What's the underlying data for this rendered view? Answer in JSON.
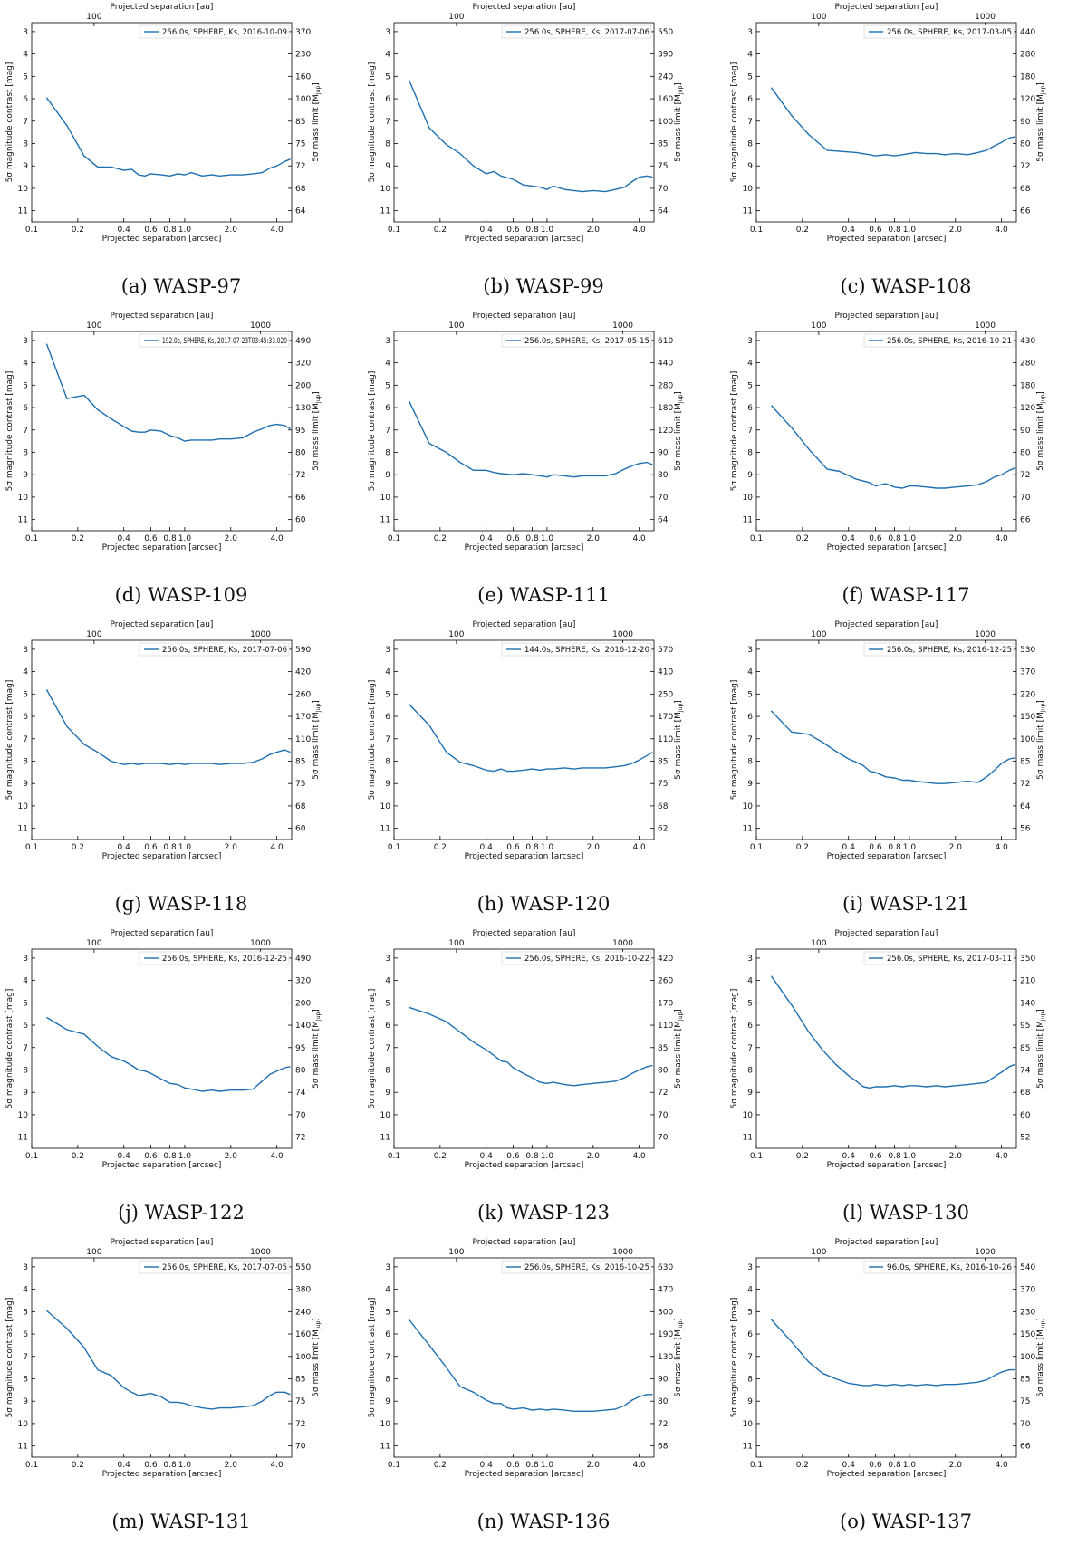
{
  "figure": {
    "common": {
      "xlabel": "Projected separation [arcsec]",
      "x2label": "Projected separation [au]",
      "ylabel": "5σ magnitude contrast [mag]",
      "y2label": "5σ mass limit [M",
      "y2label_sub": "Jup",
      "y2label_end": "]",
      "xticks": [
        "0.1",
        "0.2",
        "0.4",
        "0.6",
        "0.8",
        "1.0",
        "2.0",
        "4.0"
      ],
      "yticks": [
        "3",
        "4",
        "5",
        "6",
        "7",
        "8",
        "9",
        "10",
        "11"
      ],
      "xlim": [
        0.1,
        5.0
      ],
      "ylim": [
        11.5,
        2.6
      ],
      "line_color": "#1f6fb0"
    }
  },
  "chart_data": [
    {
      "id": "a",
      "type": "line",
      "caption": "(a) WASP-97",
      "legend": "256.0s, SPHERE, Ks, 2016-10-09",
      "au_ticks": [
        "100"
      ],
      "mass_ticks": [
        "370",
        "230",
        "160",
        "100",
        "85",
        "75",
        "72",
        "68",
        "64"
      ],
      "x": [
        0.125,
        0.17,
        0.22,
        0.27,
        0.33,
        0.4,
        0.45,
        0.5,
        0.55,
        0.6,
        0.7,
        0.8,
        0.9,
        1.0,
        1.1,
        1.3,
        1.5,
        1.7,
        2.0,
        2.4,
        2.8,
        3.2,
        3.6,
        4.0,
        4.5,
        4.9
      ],
      "y": [
        5.95,
        7.2,
        8.55,
        9.05,
        9.05,
        9.2,
        9.15,
        9.4,
        9.45,
        9.35,
        9.4,
        9.45,
        9.35,
        9.4,
        9.3,
        9.45,
        9.4,
        9.45,
        9.4,
        9.4,
        9.35,
        9.3,
        9.1,
        9.0,
        8.8,
        8.7
      ]
    },
    {
      "id": "b",
      "type": "line",
      "caption": "(b) WASP-99",
      "legend": "256.0s, SPHERE, Ks, 2017-07-06",
      "au_ticks": [
        "100"
      ],
      "mass_ticks": [
        "550",
        "390",
        "240",
        "160",
        "100",
        "85",
        "75",
        "70",
        "64"
      ],
      "x": [
        0.125,
        0.17,
        0.22,
        0.27,
        0.33,
        0.4,
        0.45,
        0.5,
        0.6,
        0.7,
        0.8,
        0.9,
        1.0,
        1.1,
        1.3,
        1.5,
        1.7,
        2.0,
        2.4,
        2.8,
        3.2,
        3.6,
        4.0,
        4.5,
        4.9
      ],
      "y": [
        5.15,
        7.3,
        8.05,
        8.45,
        9.0,
        9.35,
        9.25,
        9.45,
        9.6,
        9.85,
        9.9,
        9.95,
        10.05,
        9.9,
        10.05,
        10.1,
        10.15,
        10.1,
        10.15,
        10.05,
        9.95,
        9.7,
        9.5,
        9.45,
        9.5
      ]
    },
    {
      "id": "c",
      "type": "line",
      "caption": "(c) WASP-108",
      "legend": "256.0s, SPHERE, Ks, 2017-03-05",
      "au_ticks": [
        "100",
        "1000"
      ],
      "mass_ticks": [
        "440",
        "280",
        "180",
        "120",
        "90",
        "80",
        "72",
        "68",
        "66"
      ],
      "x": [
        0.125,
        0.17,
        0.22,
        0.29,
        0.35,
        0.45,
        0.55,
        0.6,
        0.7,
        0.8,
        0.9,
        1.0,
        1.1,
        1.3,
        1.5,
        1.7,
        2.0,
        2.4,
        2.8,
        3.2,
        3.6,
        4.0,
        4.5,
        4.9
      ],
      "y": [
        5.5,
        6.75,
        7.6,
        8.3,
        8.35,
        8.4,
        8.5,
        8.55,
        8.5,
        8.55,
        8.5,
        8.45,
        8.4,
        8.45,
        8.45,
        8.5,
        8.45,
        8.5,
        8.4,
        8.3,
        8.1,
        7.95,
        7.75,
        7.7
      ]
    },
    {
      "id": "d",
      "type": "line",
      "caption": "(d) WASP-109",
      "legend": "192.0s, SPHERE, Ks, 2017-07-23T03:45:33.020",
      "au_ticks": [
        "100",
        "1000"
      ],
      "mass_ticks": [
        "490",
        "320",
        "200",
        "130",
        "95",
        "80",
        "72",
        "66",
        "60"
      ],
      "x": [
        0.125,
        0.17,
        0.22,
        0.27,
        0.33,
        0.4,
        0.45,
        0.5,
        0.55,
        0.6,
        0.7,
        0.8,
        0.9,
        1.0,
        1.1,
        1.3,
        1.5,
        1.7,
        2.0,
        2.4,
        2.8,
        3.2,
        3.6,
        4.0,
        4.5,
        4.9
      ],
      "y": [
        3.15,
        5.6,
        5.45,
        6.1,
        6.5,
        6.85,
        7.05,
        7.1,
        7.1,
        7.0,
        7.05,
        7.25,
        7.35,
        7.5,
        7.45,
        7.45,
        7.45,
        7.4,
        7.4,
        7.35,
        7.1,
        6.95,
        6.8,
        6.75,
        6.8,
        6.95
      ]
    },
    {
      "id": "e",
      "type": "line",
      "caption": "(e) WASP-111",
      "legend": "256.0s, SPHERE, Ks, 2017-05-15",
      "au_ticks": [
        "100",
        "1000"
      ],
      "mass_ticks": [
        "610",
        "440",
        "280",
        "180",
        "120",
        "90",
        "80",
        "70",
        "64"
      ],
      "x": [
        0.125,
        0.17,
        0.22,
        0.27,
        0.33,
        0.4,
        0.45,
        0.5,
        0.6,
        0.7,
        0.8,
        0.9,
        1.0,
        1.1,
        1.3,
        1.5,
        1.7,
        2.0,
        2.4,
        2.8,
        3.2,
        3.6,
        4.0,
        4.5,
        4.9
      ],
      "y": [
        5.7,
        7.6,
        8.0,
        8.45,
        8.8,
        8.8,
        8.9,
        8.95,
        9.0,
        8.95,
        9.0,
        9.05,
        9.1,
        9.0,
        9.05,
        9.1,
        9.05,
        9.05,
        9.05,
        8.95,
        8.75,
        8.6,
        8.5,
        8.45,
        8.55
      ]
    },
    {
      "id": "f",
      "type": "line",
      "caption": "(f) WASP-117",
      "legend": "256.0s, SPHERE, Ks, 2016-10-21",
      "au_ticks": [
        "100",
        "1000"
      ],
      "mass_ticks": [
        "430",
        "280",
        "180",
        "120",
        "90",
        "80",
        "72",
        "70",
        "66"
      ],
      "x": [
        0.125,
        0.17,
        0.22,
        0.29,
        0.35,
        0.45,
        0.55,
        0.6,
        0.7,
        0.8,
        0.9,
        1.0,
        1.1,
        1.3,
        1.5,
        1.7,
        2.0,
        2.4,
        2.8,
        3.2,
        3.6,
        4.0,
        4.5,
        4.9
      ],
      "y": [
        5.9,
        6.9,
        7.85,
        8.75,
        8.85,
        9.2,
        9.35,
        9.5,
        9.4,
        9.55,
        9.6,
        9.5,
        9.5,
        9.55,
        9.6,
        9.6,
        9.55,
        9.5,
        9.45,
        9.3,
        9.1,
        9.0,
        8.8,
        8.7
      ]
    },
    {
      "id": "g",
      "type": "line",
      "caption": "(g) WASP-118",
      "legend": "256.0s, SPHERE, Ks, 2017-07-06",
      "au_ticks": [
        "100",
        "1000"
      ],
      "mass_ticks": [
        "590",
        "420",
        "260",
        "170",
        "110",
        "85",
        "75",
        "68",
        "60"
      ],
      "x": [
        0.125,
        0.17,
        0.22,
        0.27,
        0.33,
        0.4,
        0.45,
        0.5,
        0.55,
        0.6,
        0.7,
        0.8,
        0.9,
        1.0,
        1.1,
        1.3,
        1.5,
        1.7,
        2.0,
        2.4,
        2.8,
        3.2,
        3.6,
        4.0,
        4.5,
        4.9
      ],
      "y": [
        4.8,
        6.45,
        7.25,
        7.6,
        8.0,
        8.15,
        8.1,
        8.15,
        8.1,
        8.1,
        8.1,
        8.15,
        8.1,
        8.15,
        8.1,
        8.1,
        8.1,
        8.15,
        8.1,
        8.1,
        8.05,
        7.9,
        7.7,
        7.6,
        7.5,
        7.6
      ]
    },
    {
      "id": "h",
      "type": "line",
      "caption": "(h) WASP-120",
      "legend": "144.0s, SPHERE, Ks, 2016-12-20",
      "au_ticks": [
        "100",
        "1000"
      ],
      "mass_ticks": [
        "570",
        "410",
        "250",
        "170",
        "110",
        "85",
        "75",
        "68",
        "62"
      ],
      "x": [
        0.125,
        0.17,
        0.22,
        0.27,
        0.33,
        0.4,
        0.45,
        0.5,
        0.55,
        0.6,
        0.7,
        0.8,
        0.9,
        1.0,
        1.1,
        1.3,
        1.5,
        1.7,
        2.0,
        2.4,
        2.8,
        3.2,
        3.6,
        4.0,
        4.5,
        4.9
      ],
      "y": [
        5.45,
        6.4,
        7.6,
        8.05,
        8.2,
        8.4,
        8.45,
        8.35,
        8.45,
        8.45,
        8.4,
        8.35,
        8.4,
        8.35,
        8.35,
        8.3,
        8.35,
        8.3,
        8.3,
        8.3,
        8.25,
        8.2,
        8.1,
        7.95,
        7.75,
        7.6
      ]
    },
    {
      "id": "i",
      "type": "line",
      "caption": "(i) WASP-121",
      "legend": "256.0s, SPHERE, Ks, 2016-12-25",
      "au_ticks": [
        "100",
        "1000"
      ],
      "mass_ticks": [
        "530",
        "370",
        "220",
        "150",
        "100",
        "85",
        "72",
        "64",
        "56"
      ],
      "x": [
        0.125,
        0.17,
        0.22,
        0.27,
        0.33,
        0.4,
        0.45,
        0.5,
        0.55,
        0.6,
        0.7,
        0.8,
        0.9,
        1.0,
        1.1,
        1.3,
        1.5,
        1.7,
        2.0,
        2.4,
        2.8,
        3.2,
        3.6,
        4.0,
        4.5,
        4.9
      ],
      "y": [
        5.75,
        6.7,
        6.8,
        7.15,
        7.55,
        7.9,
        8.05,
        8.2,
        8.45,
        8.5,
        8.7,
        8.75,
        8.85,
        8.85,
        8.9,
        8.95,
        9.0,
        9.0,
        8.95,
        8.9,
        8.95,
        8.7,
        8.4,
        8.1,
        7.9,
        7.85
      ]
    },
    {
      "id": "j",
      "type": "line",
      "caption": "(j) WASP-122",
      "legend": "256.0s, SPHERE, Ks, 2016-12-25",
      "au_ticks": [
        "100",
        "1000"
      ],
      "mass_ticks": [
        "490",
        "320",
        "200",
        "140",
        "95",
        "80",
        "74",
        "70",
        "72"
      ],
      "x": [
        0.125,
        0.17,
        0.22,
        0.27,
        0.33,
        0.4,
        0.45,
        0.5,
        0.55,
        0.6,
        0.7,
        0.8,
        0.9,
        1.0,
        1.1,
        1.3,
        1.5,
        1.7,
        2.0,
        2.4,
        2.8,
        3.2,
        3.6,
        4.0,
        4.5,
        4.9
      ],
      "y": [
        5.65,
        6.2,
        6.4,
        6.95,
        7.4,
        7.6,
        7.8,
        8.0,
        8.05,
        8.15,
        8.4,
        8.6,
        8.65,
        8.8,
        8.85,
        8.95,
        8.9,
        8.95,
        8.9,
        8.9,
        8.85,
        8.5,
        8.2,
        8.05,
        7.9,
        7.85
      ]
    },
    {
      "id": "k",
      "type": "line",
      "caption": "(k) WASP-123",
      "legend": "256.0s, SPHERE, Ks, 2016-10-22",
      "au_ticks": [
        "100",
        "1000"
      ],
      "mass_ticks": [
        "420",
        "260",
        "170",
        "110",
        "85",
        "80",
        "72",
        "70",
        "70"
      ],
      "x": [
        0.125,
        0.17,
        0.22,
        0.27,
        0.33,
        0.4,
        0.45,
        0.5,
        0.55,
        0.6,
        0.7,
        0.8,
        0.9,
        1.0,
        1.1,
        1.3,
        1.5,
        1.7,
        2.0,
        2.4,
        2.8,
        3.2,
        3.6,
        4.0,
        4.5,
        4.9
      ],
      "y": [
        5.2,
        5.5,
        5.85,
        6.3,
        6.75,
        7.1,
        7.35,
        7.6,
        7.65,
        7.9,
        8.15,
        8.35,
        8.55,
        8.6,
        8.55,
        8.65,
        8.7,
        8.65,
        8.6,
        8.55,
        8.5,
        8.35,
        8.15,
        8.0,
        7.85,
        7.8
      ]
    },
    {
      "id": "l",
      "type": "line",
      "caption": "(l) WASP-130",
      "legend": "256.0s, SPHERE, Ks, 2017-03-11",
      "au_ticks": [
        "100"
      ],
      "mass_ticks": [
        "350",
        "210",
        "140",
        "95",
        "85",
        "74",
        "68",
        "60",
        "52"
      ],
      "x": [
        0.125,
        0.17,
        0.22,
        0.27,
        0.33,
        0.4,
        0.45,
        0.5,
        0.55,
        0.6,
        0.7,
        0.8,
        0.9,
        1.0,
        1.1,
        1.3,
        1.5,
        1.7,
        2.0,
        2.4,
        2.8,
        3.2,
        3.6,
        4.0,
        4.5,
        4.9
      ],
      "y": [
        3.8,
        5.1,
        6.3,
        7.1,
        7.75,
        8.25,
        8.5,
        8.75,
        8.8,
        8.75,
        8.75,
        8.7,
        8.75,
        8.7,
        8.7,
        8.75,
        8.7,
        8.75,
        8.7,
        8.65,
        8.6,
        8.55,
        8.3,
        8.1,
        7.85,
        7.75
      ]
    },
    {
      "id": "m",
      "type": "line",
      "caption": "(m) WASP-131",
      "legend": "256.0s, SPHERE, Ks, 2017-07-05",
      "au_ticks": [
        "100",
        "1000"
      ],
      "mass_ticks": [
        "550",
        "380",
        "240",
        "160",
        "100",
        "85",
        "75",
        "72",
        "70"
      ],
      "x": [
        0.125,
        0.17,
        0.22,
        0.27,
        0.33,
        0.4,
        0.45,
        0.5,
        0.55,
        0.6,
        0.7,
        0.8,
        0.9,
        1.0,
        1.1,
        1.3,
        1.5,
        1.7,
        2.0,
        2.4,
        2.8,
        3.2,
        3.6,
        4.0,
        4.5,
        4.9
      ],
      "y": [
        4.95,
        5.75,
        6.6,
        7.6,
        7.85,
        8.4,
        8.6,
        8.75,
        8.7,
        8.65,
        8.8,
        9.05,
        9.05,
        9.1,
        9.2,
        9.3,
        9.35,
        9.3,
        9.3,
        9.25,
        9.2,
        9.0,
        8.75,
        8.6,
        8.6,
        8.7
      ]
    },
    {
      "id": "n",
      "type": "line",
      "caption": "(n) WASP-136",
      "legend": "256.0s, SPHERE, Ks, 2016-10-25",
      "au_ticks": [
        "100",
        "1000"
      ],
      "mass_ticks": [
        "630",
        "470",
        "300",
        "190",
        "130",
        "90",
        "80",
        "72",
        "68"
      ],
      "x": [
        0.125,
        0.17,
        0.22,
        0.27,
        0.33,
        0.4,
        0.45,
        0.5,
        0.55,
        0.6,
        0.7,
        0.8,
        0.9,
        1.0,
        1.1,
        1.3,
        1.5,
        1.7,
        2.0,
        2.4,
        2.8,
        3.2,
        3.6,
        4.0,
        4.5,
        4.9
      ],
      "y": [
        5.35,
        6.5,
        7.5,
        8.35,
        8.6,
        8.95,
        9.1,
        9.1,
        9.3,
        9.35,
        9.3,
        9.4,
        9.35,
        9.4,
        9.35,
        9.4,
        9.45,
        9.45,
        9.45,
        9.4,
        9.35,
        9.2,
        8.95,
        8.8,
        8.7,
        8.7
      ]
    },
    {
      "id": "o",
      "type": "line",
      "caption": "(o) WASP-137",
      "legend": "96.0s, SPHERE, Ks, 2016-10-26",
      "au_ticks": [
        "100",
        "1000"
      ],
      "mass_ticks": [
        "540",
        "370",
        "230",
        "150",
        "100",
        "85",
        "75",
        "70",
        "66"
      ],
      "x": [
        0.125,
        0.17,
        0.22,
        0.27,
        0.33,
        0.4,
        0.45,
        0.5,
        0.55,
        0.6,
        0.7,
        0.8,
        0.9,
        1.0,
        1.1,
        1.3,
        1.5,
        1.7,
        2.0,
        2.4,
        2.8,
        3.2,
        3.6,
        4.0,
        4.5,
        4.9
      ],
      "y": [
        5.35,
        6.35,
        7.25,
        7.75,
        8.0,
        8.2,
        8.25,
        8.3,
        8.3,
        8.25,
        8.3,
        8.25,
        8.3,
        8.25,
        8.3,
        8.25,
        8.3,
        8.25,
        8.25,
        8.2,
        8.15,
        8.05,
        7.85,
        7.7,
        7.6,
        7.6
      ]
    }
  ]
}
